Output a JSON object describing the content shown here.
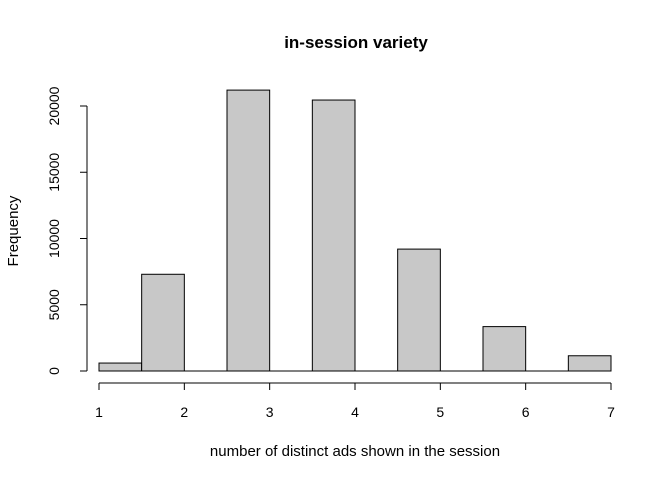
{
  "chart_data": {
    "type": "bar",
    "title": "in-session variety",
    "xlabel": "number of distinct ads shown in the session",
    "ylabel": "Frequency",
    "x_ticks": [
      1,
      2,
      3,
      4,
      5,
      6,
      7
    ],
    "y_ticks": [
      0,
      5000,
      10000,
      15000,
      20000
    ],
    "xlim": [
      1,
      7
    ],
    "ylim": [
      0,
      21200
    ],
    "bins": [
      {
        "start": 1.0,
        "end": 1.5,
        "value": 600
      },
      {
        "start": 1.5,
        "end": 2.0,
        "value": 7300
      },
      {
        "start": 2.0,
        "end": 2.5,
        "value": 0
      },
      {
        "start": 2.5,
        "end": 3.0,
        "value": 21200
      },
      {
        "start": 3.0,
        "end": 3.5,
        "value": 0
      },
      {
        "start": 3.5,
        "end": 4.0,
        "value": 20450
      },
      {
        "start": 4.0,
        "end": 4.5,
        "value": 0
      },
      {
        "start": 4.5,
        "end": 5.0,
        "value": 9200
      },
      {
        "start": 5.0,
        "end": 5.5,
        "value": 0
      },
      {
        "start": 5.5,
        "end": 6.0,
        "value": 3350
      },
      {
        "start": 6.0,
        "end": 6.5,
        "value": 0
      },
      {
        "start": 6.5,
        "end": 7.0,
        "value": 1150
      }
    ],
    "bar_color": "#c8c8c8",
    "grid": false
  }
}
